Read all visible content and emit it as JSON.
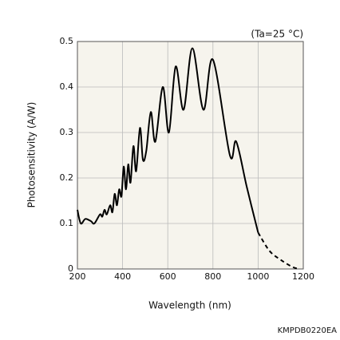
{
  "chart_data": {
    "type": "line",
    "annotation": "(Ta=25 °C)",
    "code": "KMPDB0220EA",
    "x_label": "Wavelength (nm)",
    "y_label": "Photosensitivity (A/W)",
    "xlim": [
      200,
      1200
    ],
    "ylim": [
      0,
      0.5
    ],
    "xticks": [
      200,
      400,
      600,
      800,
      1000,
      1200
    ],
    "yticks": [
      0,
      0.1,
      0.2,
      0.3,
      0.4,
      0.5
    ],
    "grid": true,
    "series": [
      {
        "color": "#000000",
        "dash": false,
        "x": [
          200,
          215,
          235,
          260,
          275,
          300,
          310,
          320,
          330,
          345,
          355,
          365,
          375,
          385,
          395,
          405,
          415,
          425,
          435,
          448,
          460,
          477,
          490,
          505,
          525,
          545,
          578,
          605,
          635,
          670,
          709,
          758,
          800,
          875,
          903,
          950,
          1000
        ],
        "values": [
          0.13,
          0.1,
          0.11,
          0.105,
          0.1,
          0.12,
          0.115,
          0.13,
          0.12,
          0.14,
          0.125,
          0.165,
          0.14,
          0.175,
          0.16,
          0.225,
          0.175,
          0.23,
          0.19,
          0.27,
          0.215,
          0.31,
          0.24,
          0.26,
          0.345,
          0.28,
          0.4,
          0.3,
          0.445,
          0.35,
          0.485,
          0.35,
          0.46,
          0.25,
          0.28,
          0.18,
          0.08
        ]
      },
      {
        "color": "#000000",
        "dash": true,
        "x": [
          1000,
          1050,
          1100,
          1150,
          1180
        ],
        "values": [
          0.08,
          0.04,
          0.02,
          0.005,
          0
        ]
      }
    ]
  }
}
